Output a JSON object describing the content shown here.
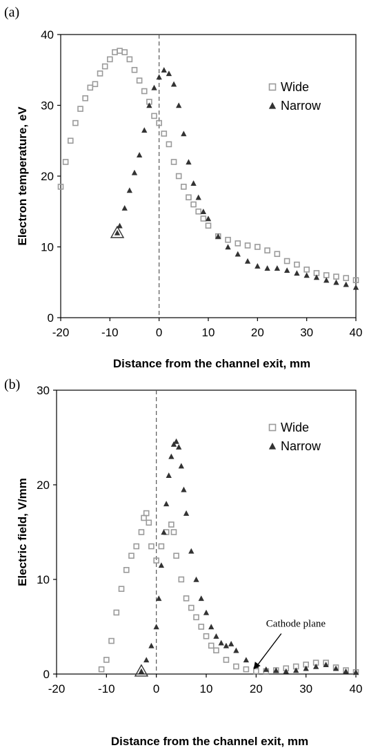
{
  "chart_data": [
    {
      "type": "scatter",
      "panel_label": "(a)",
      "xlabel": "Distance from the channel exit, mm",
      "ylabel": "Electron temperature, eV",
      "xlim": [
        -20,
        40
      ],
      "ylim": [
        0,
        40
      ],
      "xticks": [
        "-20",
        "-10",
        "0",
        "10",
        "20",
        "30",
        "40"
      ],
      "yticks": [
        "0",
        "10",
        "20",
        "30",
        "40"
      ],
      "legend_position": "top-right",
      "reference_line_x": 0,
      "series": [
        {
          "name": "Wide",
          "marker": "square",
          "color": "#9a9a9a",
          "x": [
            -20,
            -19,
            -18,
            -17,
            -16,
            -15,
            -14,
            -13,
            -12,
            -11,
            -10,
            -9,
            -8,
            -7,
            -6,
            -5,
            -4,
            -3,
            -2,
            -1,
            0,
            1,
            2,
            3,
            4,
            5,
            6,
            7,
            8,
            9,
            10,
            12,
            14,
            16,
            18,
            20,
            22,
            24,
            26,
            28,
            30,
            32,
            34,
            36,
            38,
            40
          ],
          "y": [
            18.5,
            22,
            25,
            27.5,
            29.5,
            31,
            32.5,
            33,
            34.5,
            35.5,
            36.5,
            37.5,
            37.7,
            37.5,
            36.5,
            35,
            33.5,
            32,
            30.5,
            28.5,
            27.5,
            26,
            24.5,
            22,
            20,
            18.5,
            17,
            16,
            15,
            14,
            13,
            11.5,
            11,
            10.5,
            10.2,
            10,
            9.5,
            9,
            8,
            7.5,
            6.8,
            6.3,
            6,
            5.8,
            5.6,
            5.3
          ]
        },
        {
          "name": "Narrow",
          "marker": "triangle",
          "color": "#333333",
          "x": [
            -8.5,
            -8,
            -7,
            -6,
            -5,
            -4,
            -3,
            -2,
            -1,
            0,
            1,
            2,
            3,
            4,
            5,
            6,
            7,
            8,
            9,
            10,
            12,
            14,
            16,
            18,
            20,
            22,
            24,
            26,
            28,
            30,
            32,
            34,
            36,
            38,
            40
          ],
          "y": [
            12,
            13,
            15.5,
            18,
            20.5,
            23,
            26.5,
            30,
            32.5,
            34,
            35,
            34.5,
            33,
            30,
            26,
            22,
            19,
            17,
            15,
            14,
            11.5,
            10,
            9,
            8,
            7.3,
            7,
            7,
            6.7,
            6.3,
            6,
            5.7,
            5.3,
            5,
            4.7,
            4.3
          ]
        }
      ]
    },
    {
      "type": "scatter",
      "panel_label": "(b)",
      "xlabel": "Distance from the channel exit, mm",
      "ylabel": "Electric field,  V/mm",
      "xlim": [
        -20,
        40
      ],
      "ylim": [
        0,
        30
      ],
      "xticks": [
        "-20",
        "-10",
        "0",
        "10",
        "20",
        "30",
        "40"
      ],
      "yticks": [
        "0",
        "10",
        "20",
        "30"
      ],
      "legend_position": "top-right",
      "reference_line_x": 0,
      "annotation": {
        "text": "Cathode plane",
        "x": 22,
        "y": 5,
        "arrow_to_x": 19.5,
        "arrow_to_y": 0.5
      },
      "series": [
        {
          "name": "Wide",
          "marker": "square",
          "color": "#9a9a9a",
          "x": [
            -11,
            -10,
            -9,
            -8,
            -7,
            -6,
            -5,
            -4,
            -3,
            -2.5,
            -2,
            -1.5,
            -1,
            0,
            1,
            2,
            3,
            3.5,
            4,
            5,
            6,
            7,
            8,
            9,
            10,
            11,
            12,
            14,
            16,
            18,
            20,
            22,
            24,
            26,
            28,
            30,
            32,
            34,
            36,
            38,
            40
          ],
          "y": [
            0.5,
            1.5,
            3.5,
            6.5,
            9,
            11,
            12.5,
            13.5,
            15,
            16.5,
            17,
            16,
            13.5,
            12,
            13.5,
            15,
            15.8,
            15,
            12.5,
            10,
            8,
            7,
            6,
            5,
            4,
            3,
            2.5,
            1.5,
            0.8,
            0.5,
            0.3,
            0.3,
            0.4,
            0.6,
            0.8,
            1,
            1.2,
            1.2,
            0.7,
            0.4,
            0.2
          ]
        },
        {
          "name": "Narrow",
          "marker": "triangle",
          "color": "#333333",
          "x": [
            -3,
            -2,
            -1,
            0,
            0.5,
            1,
            1.5,
            2,
            2.5,
            3,
            3.5,
            4,
            4.5,
            5,
            5.5,
            6,
            7,
            8,
            9,
            10,
            11,
            12,
            13,
            14,
            15,
            16,
            18,
            20,
            22,
            24,
            26,
            28,
            30,
            32,
            34,
            36,
            38,
            40
          ],
          "y": [
            0.3,
            1.5,
            3,
            5,
            8,
            11.5,
            15,
            18,
            21,
            23,
            24.3,
            24.6,
            24,
            22,
            19.5,
            17,
            13,
            10,
            8,
            6.5,
            5,
            4,
            3.3,
            3,
            3.2,
            2.5,
            1.5,
            0.9,
            0.5,
            0.4,
            0.3,
            0.4,
            0.6,
            0.8,
            1,
            0.6,
            0.3,
            0.2
          ]
        }
      ]
    }
  ]
}
